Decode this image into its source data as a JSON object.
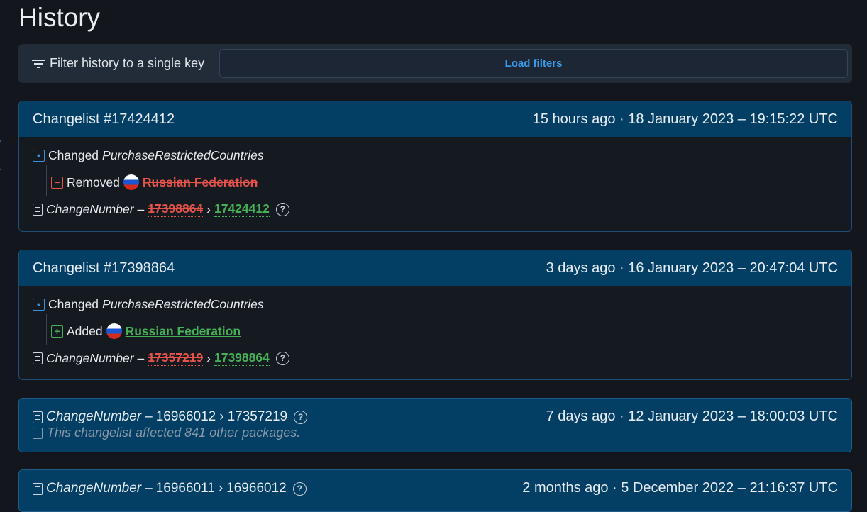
{
  "page": {
    "title": "History"
  },
  "filter": {
    "label": "Filter history to a single key",
    "button": "Load filters"
  },
  "changelists": [
    {
      "title": "Changelist #17424412",
      "time": "15 hours ago · 18 January 2023 – 19:15:22 UTC",
      "changed_verb": "Changed",
      "key": "PurchaseRestrictedCountries",
      "action": "Removed",
      "value": "Russian Federation",
      "cn_label": "ChangeNumber",
      "old": "17398864",
      "new": "17424412"
    },
    {
      "title": "Changelist #17398864",
      "time": "3 days ago · 16 January 2023 – 20:47:04 UTC",
      "changed_verb": "Changed",
      "key": "PurchaseRestrictedCountries",
      "action": "Added",
      "value": "Russian Federation",
      "cn_label": "ChangeNumber",
      "old": "17357219",
      "new": "17398864"
    }
  ],
  "compact": [
    {
      "cn_label": "ChangeNumber",
      "old": "16966012",
      "new": "17357219",
      "time": "7 days ago · 12 January 2023 – 18:00:03 UTC",
      "note": "This changelist affected 841 other packages."
    },
    {
      "cn_label": "ChangeNumber",
      "old": "16966011",
      "new": "16966012",
      "time": "2 months ago · 5 December 2022 – 21:16:37 UTC"
    }
  ],
  "symbols": {
    "dash": "–",
    "arrow": "›",
    "q": "?",
    "minus": "−",
    "plus": "+"
  }
}
